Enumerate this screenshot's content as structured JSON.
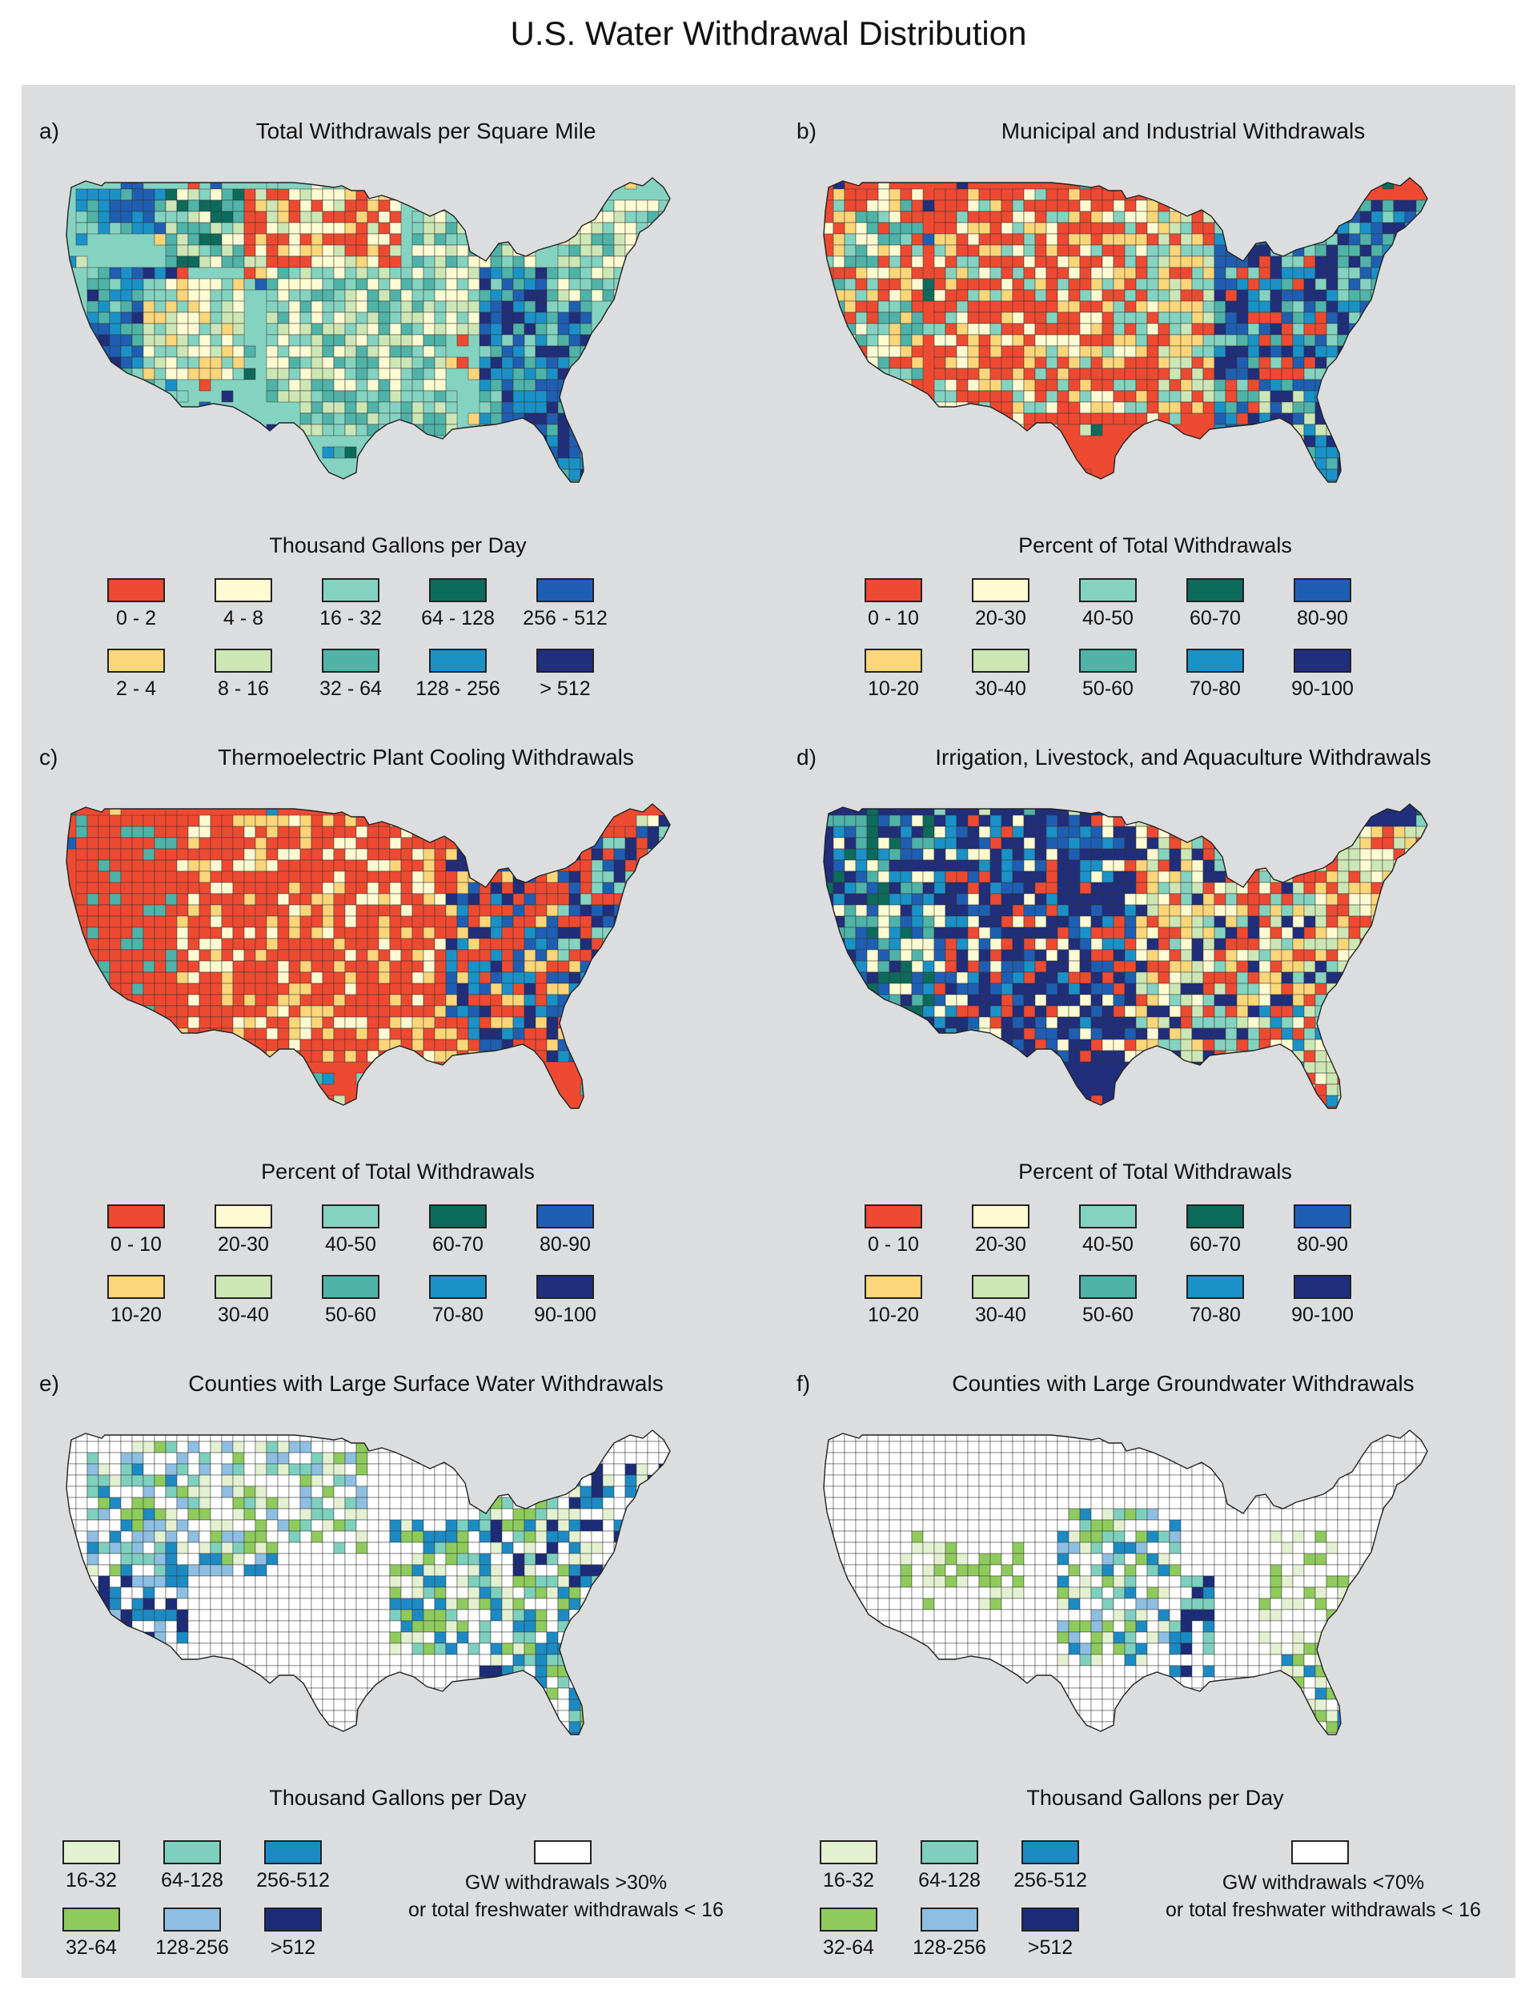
{
  "title": "U.S. Water Withdrawal Distribution",
  "colors": {
    "bg": "#dcdddf",
    "c0": "#ee4a32",
    "c1": "#fdd67a",
    "c2": "#fefbd2",
    "c3": "#cde6b6",
    "c4": "#84d3c1",
    "c5": "#4fb3a8",
    "c6": "#0d6b5c",
    "c7": "#1a92c8",
    "c8": "#1f5fb3",
    "c9": "#202e7b",
    "g0": "#e4f1d1",
    "g1": "#8ecb5c",
    "g2": "#7ed0be",
    "g3": "#8ebfe2",
    "g4": "#1c8bc4",
    "g5": "#1c2c78"
  },
  "panels": [
    {
      "id": "a",
      "label": "a)",
      "title": "Total Withdrawals per Square Mile",
      "legend_title": "Thousand Gallons per Day",
      "legend": [
        "0 - 2",
        "2 - 4",
        "4 - 8",
        "8 - 16",
        "16 - 32",
        "32 - 64",
        "64 - 128",
        "128 - 256",
        "256 - 512",
        "> 512"
      ]
    },
    {
      "id": "b",
      "label": "b)",
      "title": "Municipal and Industrial Withdrawals",
      "legend_title": "Percent of Total Withdrawals",
      "legend": [
        "0 - 10",
        "10-20",
        "20-30",
        "30-40",
        "40-50",
        "50-60",
        "60-70",
        "70-80",
        "80-90",
        "90-100"
      ]
    },
    {
      "id": "c",
      "label": "c)",
      "title": "Thermoelectric Plant Cooling Withdrawals",
      "legend_title": "Percent of Total Withdrawals",
      "legend": [
        "0 - 10",
        "10-20",
        "20-30",
        "30-40",
        "40-50",
        "50-60",
        "60-70",
        "70-80",
        "80-90",
        "90-100"
      ]
    },
    {
      "id": "d",
      "label": "d)",
      "title": "Irrigation, Livestock, and Aquaculture Withdrawals",
      "legend_title": "Percent of Total Withdrawals",
      "legend": [
        "0 - 10",
        "10-20",
        "20-30",
        "30-40",
        "40-50",
        "50-60",
        "60-70",
        "70-80",
        "80-90",
        "90-100"
      ]
    },
    {
      "id": "e",
      "label": "e)",
      "title": "Counties with Large Surface Water Withdrawals",
      "legend_title": "Thousand Gallons per Day",
      "legend": [
        "16-32",
        "32-64",
        "64-128",
        "128-256",
        "256-512",
        ">512"
      ],
      "note": [
        "GW withdrawals >30%",
        "or total freshwater withdrawals < 16"
      ]
    },
    {
      "id": "f",
      "label": "f)",
      "title": "Counties with Large Groundwater Withdrawals",
      "legend_title": "Thousand Gallons per Day",
      "legend": [
        "16-32",
        "32-64",
        "64-128",
        "128-256",
        "256-512",
        ">512"
      ],
      "note": [
        "GW withdrawals <70%",
        "or total freshwater withdrawals < 16"
      ]
    }
  ]
}
